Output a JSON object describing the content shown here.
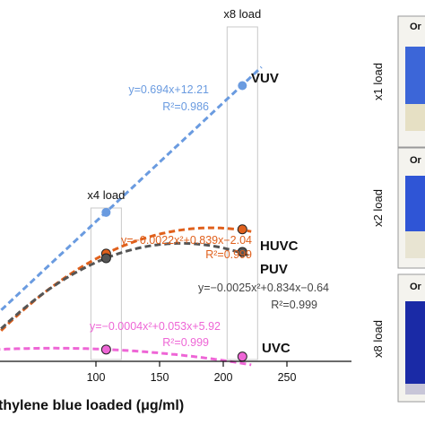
{
  "chart_data": {
    "type": "scatter",
    "xlabel": "thylene blue loaded (μg/ml)",
    "ylabel": "",
    "xlim": [
      50,
      270
    ],
    "xticks": [
      "100",
      "150",
      "200",
      "250"
    ],
    "grid": false,
    "series": [
      {
        "name": "VUV",
        "color": "#6a9be0",
        "fit": "linear",
        "coef": [
          12.21,
          0.694
        ],
        "points": [
          [
            108,
            87
          ],
          [
            215,
            161
          ]
        ],
        "equation": "y=0.694x+12.21",
        "r2": "R²=0.986"
      },
      {
        "name": "HUVC",
        "color": "#e0601c",
        "fit": "quadratic",
        "coef": [
          -2.04,
          0.839,
          -0.0022
        ],
        "points": [
          [
            108,
            62.9
          ],
          [
            215,
            77.1
          ]
        ],
        "equation": "y=−0.0022x²+0.839x−2.04",
        "r2": "R²=0.999"
      },
      {
        "name": "PUV",
        "color": "#555555",
        "fit": "quadratic",
        "coef": [
          -0.64,
          0.834,
          -0.0025
        ],
        "points": [
          [
            108,
            60.2
          ],
          [
            215,
            63.9
          ]
        ],
        "equation": "y=−0.0025x²+0.834x−0.64",
        "r2": "R²=0.999"
      },
      {
        "name": "UVC",
        "color": "#ee66d6",
        "fit": "quadratic",
        "coef": [
          5.92,
          0.053,
          -0.0004
        ],
        "points": [
          [
            108,
            6.9
          ],
          [
            215,
            2.8
          ]
        ],
        "equation": "y=−0.0004x²+0.053x+5.92",
        "r2": "R²=0.999"
      }
    ],
    "annotations": [
      {
        "text": "x4 load",
        "x": 108
      },
      {
        "text": "x8 load",
        "x": 215
      }
    ]
  },
  "photos": [
    {
      "side_label": "x1 load",
      "title": "Or",
      "liquid": "#3c66d8"
    },
    {
      "side_label": "x2 load",
      "title": "Or",
      "liquid": "#2f55d6"
    },
    {
      "side_label": "x8 load",
      "title": "Or",
      "liquid": "#1a2aa6"
    }
  ]
}
